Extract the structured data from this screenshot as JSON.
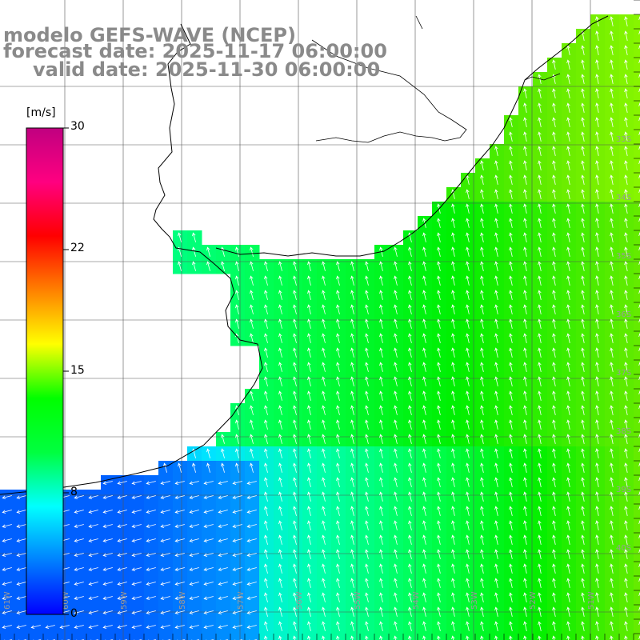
{
  "title": {
    "model": "modelo GEFS-WAVE (NCEP)",
    "forecast": "forecast date: 2025-11-17 06:00:00",
    "valid": "valid date: 2025-11-30 06:00:00"
  },
  "colorbar": {
    "unit": "[m/s]",
    "ticks": [
      "30",
      "22",
      "15",
      "8",
      "0"
    ],
    "colors": [
      "#0000ff",
      "#0080ff",
      "#00ffff",
      "#00ff40",
      "#00ff00",
      "#ffff00",
      "#ff8000",
      "#ff0000",
      "#ff0080",
      "#c00080"
    ]
  },
  "grid": {
    "lat_labels": [
      "33S",
      "34S",
      "35S",
      "36S",
      "37S",
      "38S",
      "39S",
      "40S"
    ],
    "lon_labels": [
      "61W",
      "60W",
      "59W",
      "58W",
      "57W",
      "56W",
      "55W",
      "54W",
      "53W",
      "52W",
      "51W"
    ]
  },
  "field": {
    "land_color": "#ffffff",
    "coast_color": "#000000",
    "arrow_color": "#ffffff"
  }
}
